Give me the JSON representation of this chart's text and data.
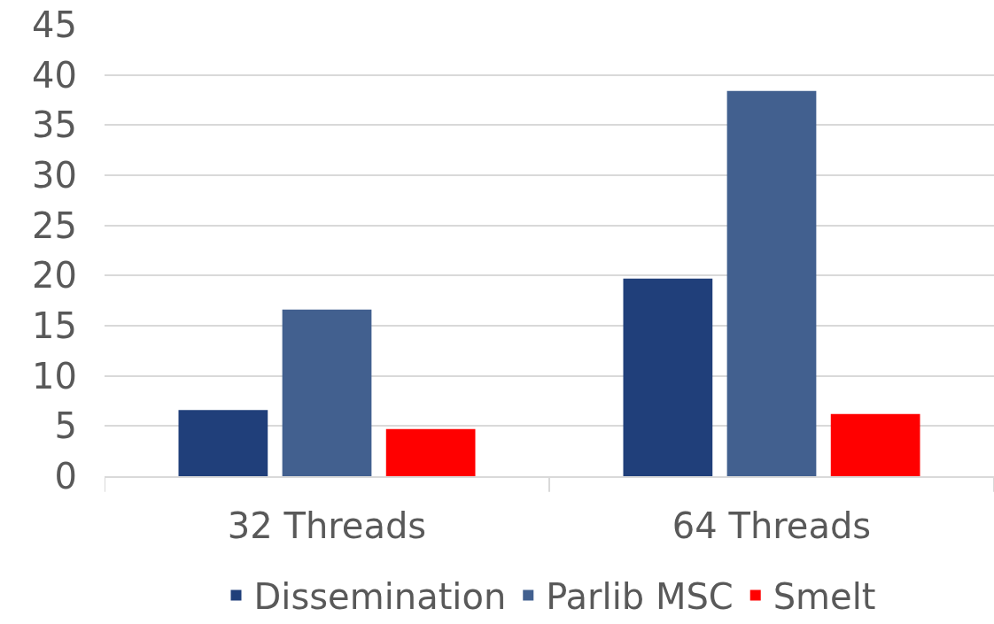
{
  "chart_data": {
    "type": "bar",
    "categories": [
      "32 Threads",
      "64 Threads"
    ],
    "series": [
      {
        "name": "Dissemination",
        "color": "#203f7a",
        "values": [
          6.6,
          19.7
        ]
      },
      {
        "name": "Parlib MSC",
        "color": "#42608f",
        "values": [
          16.6,
          38.4
        ]
      },
      {
        "name": "Smelt",
        "color": "#ff0000",
        "values": [
          4.7,
          6.2
        ]
      }
    ],
    "ylim": [
      0,
      45
    ],
    "yticks": [
      0,
      5,
      10,
      15,
      20,
      25,
      30,
      35,
      40,
      45
    ],
    "grid": "y",
    "legend": "bottom"
  }
}
